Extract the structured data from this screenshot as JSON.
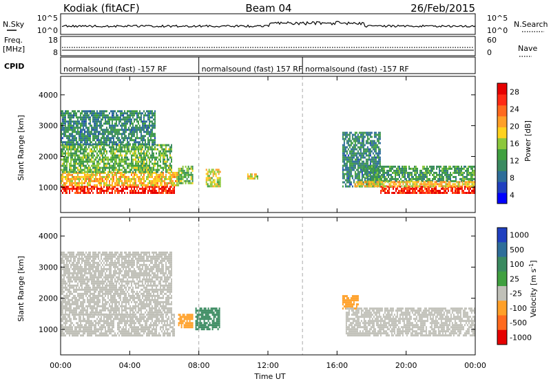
{
  "header": {
    "station": "Kodiak (fitACF)",
    "beam": "Beam 04",
    "date": "26/Feb/2015"
  },
  "status_panels": {
    "nsky": {
      "label": "N.Sky",
      "ticks": [
        "10^5",
        "10^0"
      ]
    },
    "nsearch": {
      "label": "N.Search",
      "ticks": [
        "10^5",
        "10^0"
      ]
    },
    "freq": {
      "label_line1": "Freq.",
      "label_line2": "[MHz]",
      "ticks": [
        "18",
        "8"
      ]
    },
    "nave": {
      "label": "Nave",
      "ticks": [
        "60",
        "0"
      ]
    },
    "cpid": {
      "label": "CPID",
      "segments": [
        {
          "text": "normalsound (fast) -157 RF",
          "start_hour": 0
        },
        {
          "text": "normalsound (fast) 157 RF",
          "start_hour": 8
        },
        {
          "text": "normalsound (fast) -157 RF",
          "start_hour": 14
        }
      ]
    }
  },
  "chart_data": [
    {
      "type": "heatmap",
      "name": "power",
      "ylabel": "Slant Range [km]",
      "xlabel": "Time UT",
      "xlim_hours": [
        0,
        24
      ],
      "x_tick_labels": [
        "00:00",
        "04:00",
        "08:00",
        "12:00",
        "16:00",
        "20:00",
        "00:00"
      ],
      "ylim_km": [
        180,
        4600
      ],
      "y_ticks": [
        1000,
        2000,
        3000,
        4000
      ],
      "colorbar": {
        "label": "Power [dB]",
        "ticks": [
          4,
          8,
          12,
          16,
          20,
          24,
          28
        ],
        "colors": [
          "#0000ff",
          "#2040c0",
          "#2e6e9a",
          "#3a8a60",
          "#40a040",
          "#8cc83c",
          "#ffd21e",
          "#ffa028",
          "#ff6a1e",
          "#ff2a14",
          "#e60000"
        ]
      },
      "regions": [
        {
          "t": [
            0.0,
            6.6
          ],
          "r": [
            800,
            1050
          ],
          "value": 28
        },
        {
          "t": [
            0.0,
            6.8
          ],
          "r": [
            1050,
            1500
          ],
          "value": 20
        },
        {
          "t": [
            0.0,
            6.4
          ],
          "r": [
            1500,
            2400
          ],
          "value": 14
        },
        {
          "t": [
            0.0,
            5.5
          ],
          "r": [
            2400,
            3500
          ],
          "value": 10
        },
        {
          "t": [
            6.8,
            7.6
          ],
          "r": [
            1100,
            1700
          ],
          "value": 14
        },
        {
          "t": [
            8.4,
            9.2
          ],
          "r": [
            1000,
            1600
          ],
          "value": 18
        },
        {
          "t": [
            10.8,
            11.4
          ],
          "r": [
            1300,
            1450
          ],
          "value": 18
        },
        {
          "t": [
            16.3,
            18.5
          ],
          "r": [
            1000,
            2800
          ],
          "value": 10
        },
        {
          "t": [
            17.5,
            24.0
          ],
          "r": [
            1200,
            1700
          ],
          "value": 12
        },
        {
          "t": [
            18.5,
            24.0
          ],
          "r": [
            800,
            1050
          ],
          "value": 28
        },
        {
          "t": [
            17.0,
            24.0
          ],
          "r": [
            1050,
            1200
          ],
          "value": 20
        }
      ]
    },
    {
      "type": "heatmap",
      "name": "velocity",
      "ylabel": "Slant Range [km]",
      "xlabel": "Time UT",
      "xlim_hours": [
        0,
        24
      ],
      "x_tick_labels": [
        "00:00",
        "04:00",
        "08:00",
        "12:00",
        "16:00",
        "20:00",
        "00:00"
      ],
      "ylim_km": [
        180,
        4600
      ],
      "y_ticks": [
        1000,
        2000,
        3000,
        4000
      ],
      "colorbar": {
        "label": "Velocity [m s^-1]",
        "ticks": [
          "1000",
          "500",
          "100",
          "25",
          "-25",
          "-100",
          "-500",
          "-1000"
        ],
        "colors": [
          "#2040c0",
          "#2e6e9a",
          "#3a8a60",
          "#40a040",
          "#c0c0b8",
          "#ffa028",
          "#ff6a1e",
          "#e60000"
        ]
      },
      "regions": [
        {
          "t": [
            0.0,
            6.6
          ],
          "r": [
            800,
            1500
          ],
          "value": 0
        },
        {
          "t": [
            0.0,
            6.4
          ],
          "r": [
            1500,
            3500
          ],
          "value": 0
        },
        {
          "t": [
            7.8,
            9.2
          ],
          "r": [
            1000,
            1700
          ],
          "value": 120
        },
        {
          "t": [
            6.8,
            7.6
          ],
          "r": [
            1100,
            1500
          ],
          "value": -150
        },
        {
          "t": [
            16.3,
            17.2
          ],
          "r": [
            1700,
            2100
          ],
          "value": -200
        },
        {
          "t": [
            16.5,
            24.0
          ],
          "r": [
            800,
            1700
          ],
          "value": 0
        }
      ]
    }
  ],
  "axes": {
    "xlabel": "Time UT"
  }
}
